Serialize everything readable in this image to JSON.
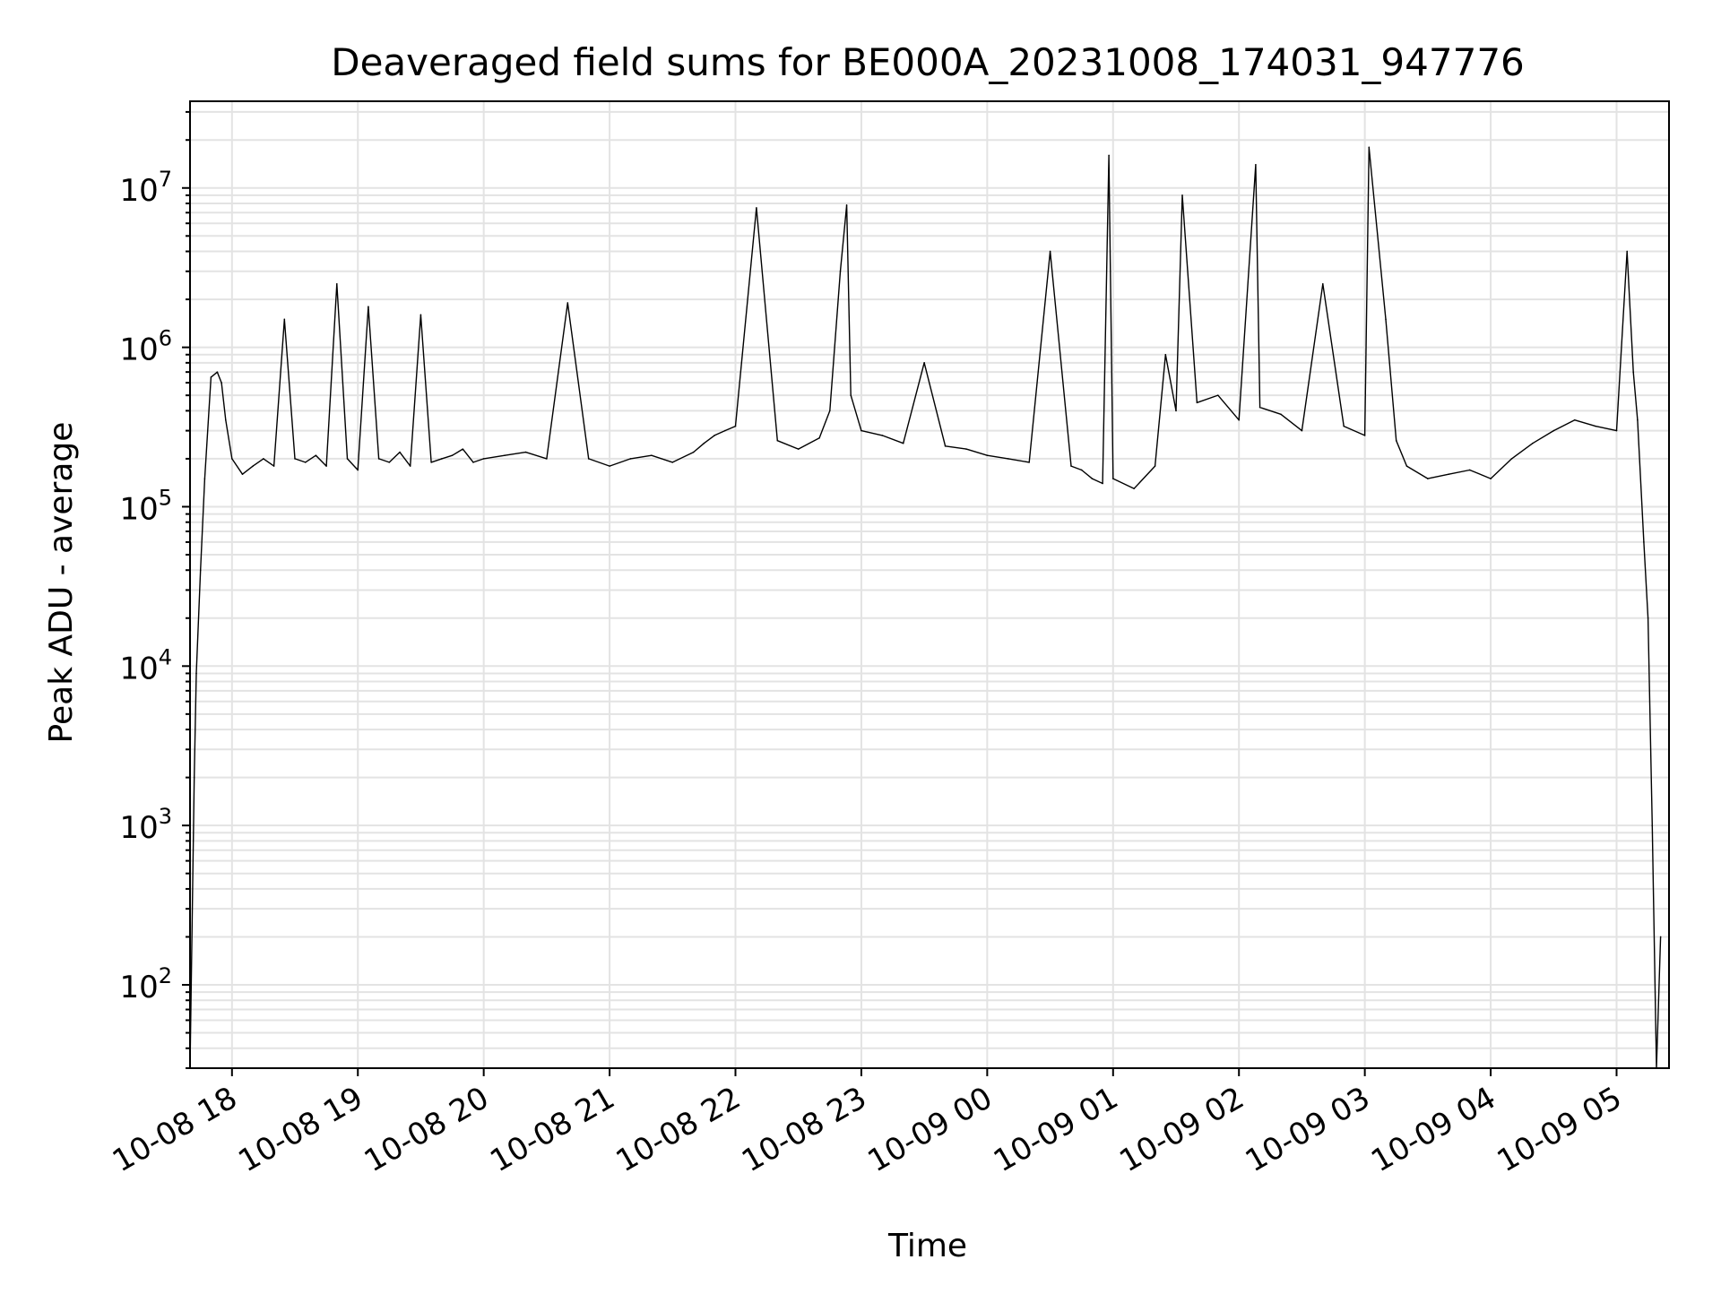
{
  "chart_data": {
    "type": "line",
    "title": "Deaveraged field sums for BE000A_20231008_174031_947776",
    "xlabel": "Time",
    "ylabel": "Peak ADU - average",
    "yscale": "log",
    "ylim": [
      30,
      35000000
    ],
    "xlim": [
      "2023-10-08 17:40",
      "2023-10-09 05:25"
    ],
    "x_ticks": [
      "10-08 18",
      "10-08 19",
      "10-08 20",
      "10-08 21",
      "10-08 22",
      "10-08 23",
      "10-09 00",
      "10-09 01",
      "10-09 02",
      "10-09 03",
      "10-09 04",
      "10-09 05"
    ],
    "y_ticks": [
      {
        "base": "10",
        "exp": "2"
      },
      {
        "base": "10",
        "exp": "3"
      },
      {
        "base": "10",
        "exp": "4"
      },
      {
        "base": "10",
        "exp": "5"
      },
      {
        "base": "10",
        "exp": "6"
      },
      {
        "base": "10",
        "exp": "7"
      }
    ],
    "grid": true,
    "line_color": "#000000",
    "series": [
      {
        "x": [
          "2023-10-08 17:40",
          "2023-10-08 17:42",
          "2023-10-08 17:43",
          "2023-10-08 17:45",
          "2023-10-08 17:47",
          "2023-10-08 17:50",
          "2023-10-08 17:53",
          "2023-10-08 17:55",
          "2023-10-08 17:57",
          "2023-10-08 18:00",
          "2023-10-08 18:05",
          "2023-10-08 18:10",
          "2023-10-08 18:15",
          "2023-10-08 18:20",
          "2023-10-08 18:25",
          "2023-10-08 18:30",
          "2023-10-08 18:35",
          "2023-10-08 18:40",
          "2023-10-08 18:45",
          "2023-10-08 18:50",
          "2023-10-08 18:55",
          "2023-10-08 19:00",
          "2023-10-08 19:05",
          "2023-10-08 19:10",
          "2023-10-08 19:15",
          "2023-10-08 19:20",
          "2023-10-08 19:25",
          "2023-10-08 19:30",
          "2023-10-08 19:35",
          "2023-10-08 19:40",
          "2023-10-08 19:45",
          "2023-10-08 19:50",
          "2023-10-08 19:55",
          "2023-10-08 20:00",
          "2023-10-08 20:10",
          "2023-10-08 20:20",
          "2023-10-08 20:30",
          "2023-10-08 20:40",
          "2023-10-08 20:50",
          "2023-10-08 21:00",
          "2023-10-08 21:10",
          "2023-10-08 21:20",
          "2023-10-08 21:30",
          "2023-10-08 21:40",
          "2023-10-08 21:45",
          "2023-10-08 21:50",
          "2023-10-08 21:55",
          "2023-10-08 22:00",
          "2023-10-08 22:10",
          "2023-10-08 22:20",
          "2023-10-08 22:30",
          "2023-10-08 22:40",
          "2023-10-08 22:45",
          "2023-10-08 22:50",
          "2023-10-08 22:53",
          "2023-10-08 22:55",
          "2023-10-08 23:00",
          "2023-10-08 23:10",
          "2023-10-08 23:20",
          "2023-10-08 23:30",
          "2023-10-08 23:40",
          "2023-10-08 23:50",
          "2023-10-09 00:00",
          "2023-10-09 00:10",
          "2023-10-09 00:20",
          "2023-10-09 00:30",
          "2023-10-09 00:40",
          "2023-10-09 00:45",
          "2023-10-09 00:50",
          "2023-10-09 00:55",
          "2023-10-09 00:58",
          "2023-10-09 01:00",
          "2023-10-09 01:10",
          "2023-10-09 01:20",
          "2023-10-09 01:25",
          "2023-10-09 01:30",
          "2023-10-09 01:33",
          "2023-10-09 01:40",
          "2023-10-09 01:50",
          "2023-10-09 02:00",
          "2023-10-09 02:08",
          "2023-10-09 02:10",
          "2023-10-09 02:20",
          "2023-10-09 02:30",
          "2023-10-09 02:40",
          "2023-10-09 02:50",
          "2023-10-09 03:00",
          "2023-10-09 03:02",
          "2023-10-09 03:10",
          "2023-10-09 03:15",
          "2023-10-09 03:20",
          "2023-10-09 03:30",
          "2023-10-09 03:40",
          "2023-10-09 03:50",
          "2023-10-09 04:00",
          "2023-10-09 04:10",
          "2023-10-09 04:20",
          "2023-10-09 04:30",
          "2023-10-09 04:40",
          "2023-10-09 04:50",
          "2023-10-09 05:00",
          "2023-10-09 05:05",
          "2023-10-09 05:08",
          "2023-10-09 05:10",
          "2023-10-09 05:13",
          "2023-10-09 05:15",
          "2023-10-09 05:17",
          "2023-10-09 05:19",
          "2023-10-09 05:21"
        ],
        "y": [
          30,
          2000,
          9000,
          40000,
          150000,
          650000,
          700000,
          600000,
          350000,
          200000,
          160000,
          180000,
          200000,
          180000,
          1500000,
          200000,
          190000,
          210000,
          180000,
          2500000,
          200000,
          170000,
          1800000,
          200000,
          190000,
          220000,
          180000,
          1600000,
          190000,
          200000,
          210000,
          230000,
          190000,
          200000,
          210000,
          220000,
          200000,
          1900000,
          200000,
          180000,
          200000,
          210000,
          190000,
          220000,
          250000,
          280000,
          300000,
          320000,
          7500000,
          260000,
          230000,
          270000,
          400000,
          3000000,
          7800000,
          500000,
          300000,
          280000,
          250000,
          800000,
          240000,
          230000,
          210000,
          200000,
          190000,
          4000000,
          180000,
          170000,
          150000,
          140000,
          16000000,
          150000,
          130000,
          180000,
          900000,
          400000,
          9000000,
          450000,
          500000,
          350000,
          14000000,
          420000,
          380000,
          300000,
          2500000,
          320000,
          280000,
          18000000,
          1500000,
          260000,
          180000,
          150000,
          160000,
          170000,
          150000,
          200000,
          250000,
          300000,
          350000,
          320000,
          300000,
          4000000,
          700000,
          350000,
          60000,
          20000,
          1000,
          30,
          200
        ]
      }
    ]
  }
}
